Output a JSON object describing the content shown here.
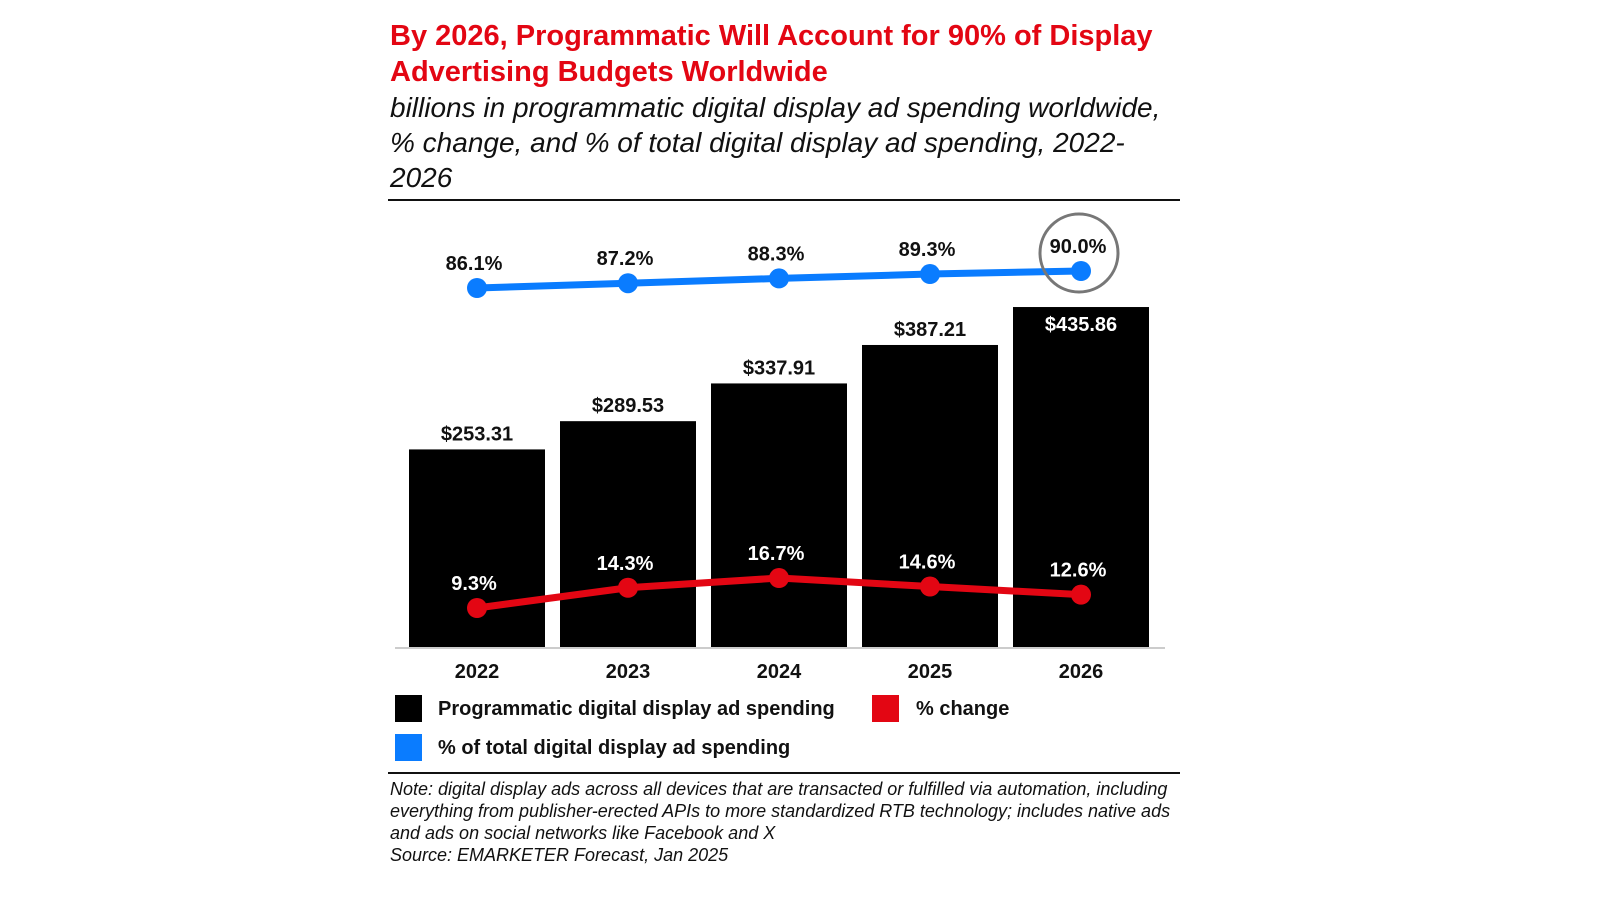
{
  "chart_data": {
    "type": "bar",
    "title": "By 2026, Programmatic Will Account for 90% of Display Advertising Budgets Worldwide",
    "subtitle": "billions in programmatic digital display ad spending worldwide, % change, and % of total digital display ad spending, 2022-2026",
    "categories": [
      "2022",
      "2023",
      "2024",
      "2025",
      "2026"
    ],
    "series": [
      {
        "name": "Programmatic digital display ad spending",
        "type": "bar",
        "color": "#000000",
        "values": [
          253.31,
          289.53,
          337.91,
          387.21,
          435.86
        ],
        "labels": [
          "$253.31",
          "$289.53",
          "$337.91",
          "$387.21",
          "$435.86"
        ]
      },
      {
        "name": "% change",
        "type": "line",
        "color": "#e30613",
        "values": [
          9.3,
          14.3,
          16.7,
          14.6,
          12.6
        ],
        "labels": [
          "9.3%",
          "14.3%",
          "16.7%",
          "14.6%",
          "12.6%"
        ]
      },
      {
        "name": "% of total digital display ad spending",
        "type": "line",
        "color": "#0a7cff",
        "values": [
          86.1,
          87.2,
          88.3,
          89.3,
          90.0
        ],
        "labels": [
          "86.1%",
          "87.2%",
          "88.3%",
          "89.3%",
          "90.0%"
        ]
      }
    ],
    "highlight": {
      "series": "% of total digital display ad spending",
      "category": "2026"
    },
    "legend": "bottom",
    "grid": false,
    "note": "Note: digital display ads across all devices that are transacted or fulfilled via automation, including everything from publisher-erected APIs to more standardized RTB technology; includes native ads and ads on social networks like Facebook and X",
    "source": "Source: EMARKETER Forecast, Jan 2025"
  }
}
